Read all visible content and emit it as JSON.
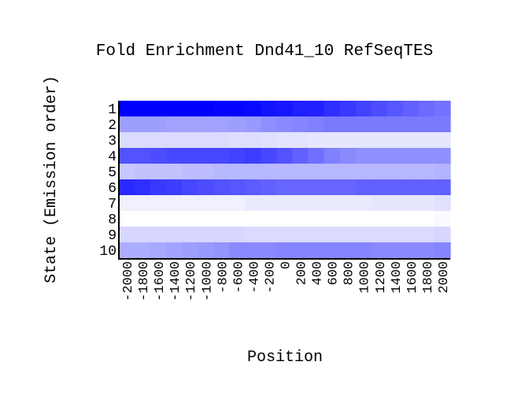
{
  "chart_data": {
    "type": "heatmap",
    "title": "Fold Enrichment Dnd41_10 RefSeqTES",
    "xlabel": "Position",
    "ylabel": "State (Emission order)",
    "x": [
      "-2000",
      "-1800",
      "-1600",
      "-1400",
      "-1200",
      "-1000",
      "-800",
      "-600",
      "-400",
      "-200",
      "0",
      "200",
      "400",
      "600",
      "800",
      "1000",
      "1200",
      "1400",
      "1600",
      "1800",
      "2000"
    ],
    "y": [
      "1",
      "2",
      "3",
      "4",
      "5",
      "6",
      "7",
      "8",
      "9",
      "10"
    ],
    "color_low": "#ffffff",
    "color_high": "#0000ff",
    "values": [
      [
        1.0,
        1.0,
        1.0,
        1.0,
        1.0,
        1.0,
        0.99,
        0.98,
        0.97,
        0.93,
        0.91,
        0.88,
        0.87,
        0.82,
        0.78,
        0.74,
        0.7,
        0.66,
        0.62,
        0.58,
        0.55
      ],
      [
        0.38,
        0.38,
        0.38,
        0.36,
        0.36,
        0.36,
        0.37,
        0.38,
        0.4,
        0.44,
        0.46,
        0.48,
        0.5,
        0.52,
        0.52,
        0.52,
        0.52,
        0.52,
        0.52,
        0.52,
        0.52
      ],
      [
        0.14,
        0.14,
        0.14,
        0.14,
        0.14,
        0.14,
        0.14,
        0.13,
        0.13,
        0.12,
        0.11,
        0.11,
        0.1,
        0.1,
        0.1,
        0.1,
        0.1,
        0.1,
        0.1,
        0.1,
        0.1
      ],
      [
        0.68,
        0.68,
        0.7,
        0.72,
        0.72,
        0.72,
        0.72,
        0.74,
        0.76,
        0.72,
        0.68,
        0.62,
        0.56,
        0.5,
        0.46,
        0.44,
        0.44,
        0.44,
        0.44,
        0.44,
        0.44
      ],
      [
        0.22,
        0.24,
        0.24,
        0.24,
        0.26,
        0.26,
        0.28,
        0.28,
        0.28,
        0.28,
        0.28,
        0.28,
        0.28,
        0.28,
        0.28,
        0.28,
        0.28,
        0.28,
        0.28,
        0.28,
        0.3
      ],
      [
        0.84,
        0.82,
        0.78,
        0.76,
        0.72,
        0.7,
        0.68,
        0.66,
        0.64,
        0.62,
        0.6,
        0.6,
        0.6,
        0.6,
        0.6,
        0.62,
        0.62,
        0.62,
        0.62,
        0.62,
        0.62
      ],
      [
        0.06,
        0.06,
        0.06,
        0.06,
        0.06,
        0.06,
        0.06,
        0.06,
        0.08,
        0.08,
        0.08,
        0.08,
        0.08,
        0.08,
        0.08,
        0.08,
        0.1,
        0.1,
        0.1,
        0.1,
        0.12
      ],
      [
        0.0,
        0.0,
        0.0,
        0.0,
        0.0,
        0.0,
        0.0,
        0.0,
        0.0,
        0.0,
        0.0,
        0.0,
        0.0,
        0.0,
        0.0,
        0.0,
        0.0,
        0.0,
        0.0,
        0.0,
        0.02
      ],
      [
        0.16,
        0.16,
        0.16,
        0.16,
        0.16,
        0.16,
        0.16,
        0.16,
        0.14,
        0.14,
        0.14,
        0.14,
        0.14,
        0.14,
        0.14,
        0.14,
        0.14,
        0.14,
        0.14,
        0.14,
        0.16
      ],
      [
        0.32,
        0.32,
        0.34,
        0.36,
        0.38,
        0.4,
        0.42,
        0.46,
        0.46,
        0.46,
        0.48,
        0.48,
        0.48,
        0.48,
        0.48,
        0.48,
        0.46,
        0.46,
        0.46,
        0.46,
        0.48
      ]
    ]
  }
}
